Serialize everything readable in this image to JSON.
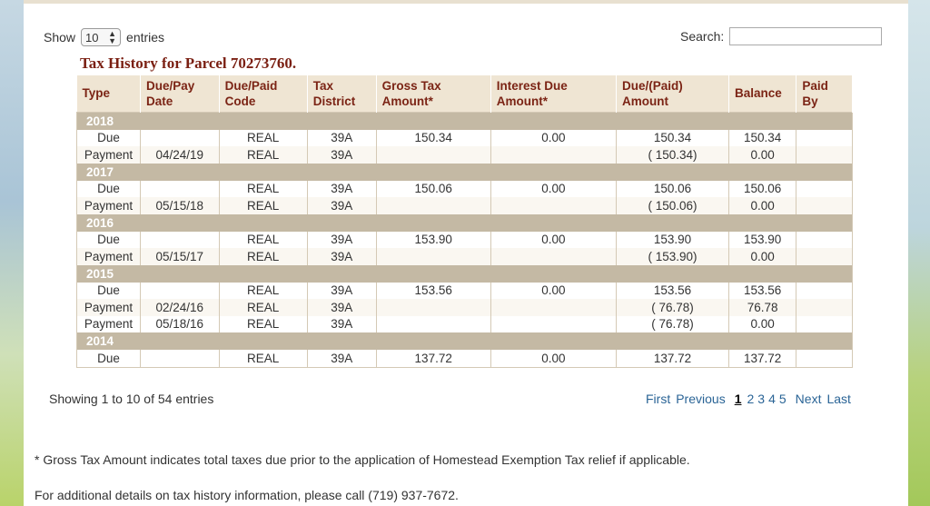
{
  "controls": {
    "show_label": "Show",
    "entries_value": "10",
    "entries_label": "entries",
    "search_label": "Search:",
    "search_value": ""
  },
  "title": "Tax History for Parcel 70273760.",
  "headers": [
    "Type",
    "Due/Pay Date",
    "Due/Paid Code",
    "Tax District",
    "Gross Tax Amount*",
    "Interest Due Amount*",
    "Due/(Paid) Amount",
    "Balance",
    "Paid By"
  ],
  "groups": [
    {
      "year": "2018",
      "rows": [
        [
          "Due",
          "",
          "REAL",
          "39A",
          "150.34",
          "0.00",
          "150.34",
          "150.34",
          ""
        ],
        [
          "Payment",
          "04/24/19",
          "REAL",
          "39A",
          "",
          "",
          "( 150.34)",
          "0.00",
          ""
        ]
      ]
    },
    {
      "year": "2017",
      "rows": [
        [
          "Due",
          "",
          "REAL",
          "39A",
          "150.06",
          "0.00",
          "150.06",
          "150.06",
          ""
        ],
        [
          "Payment",
          "05/15/18",
          "REAL",
          "39A",
          "",
          "",
          "( 150.06)",
          "0.00",
          ""
        ]
      ]
    },
    {
      "year": "2016",
      "rows": [
        [
          "Due",
          "",
          "REAL",
          "39A",
          "153.90",
          "0.00",
          "153.90",
          "153.90",
          ""
        ],
        [
          "Payment",
          "05/15/17",
          "REAL",
          "39A",
          "",
          "",
          "( 153.90)",
          "0.00",
          ""
        ]
      ]
    },
    {
      "year": "2015",
      "rows": [
        [
          "Due",
          "",
          "REAL",
          "39A",
          "153.56",
          "0.00",
          "153.56",
          "153.56",
          ""
        ],
        [
          "Payment",
          "02/24/16",
          "REAL",
          "39A",
          "",
          "",
          "( 76.78)",
          "76.78",
          ""
        ],
        [
          "Payment",
          "05/18/16",
          "REAL",
          "39A",
          "",
          "",
          "( 76.78)",
          "0.00",
          ""
        ]
      ]
    },
    {
      "year": "2014",
      "rows": [
        [
          "Due",
          "",
          "REAL",
          "39A",
          "137.72",
          "0.00",
          "137.72",
          "137.72",
          ""
        ]
      ]
    }
  ],
  "footer": {
    "info": "Showing 1 to 10 of 54 entries",
    "pager": {
      "first": "First",
      "previous": "Previous",
      "pages": [
        "1",
        "2",
        "3",
        "4",
        "5"
      ],
      "current": "1",
      "next": "Next",
      "last": "Last"
    },
    "note": "* Gross Tax Amount indicates total taxes due prior to the application of Homestead Exemption Tax relief if applicable.",
    "contact": "For additional details on tax history information, please call (719) 937-7672."
  }
}
